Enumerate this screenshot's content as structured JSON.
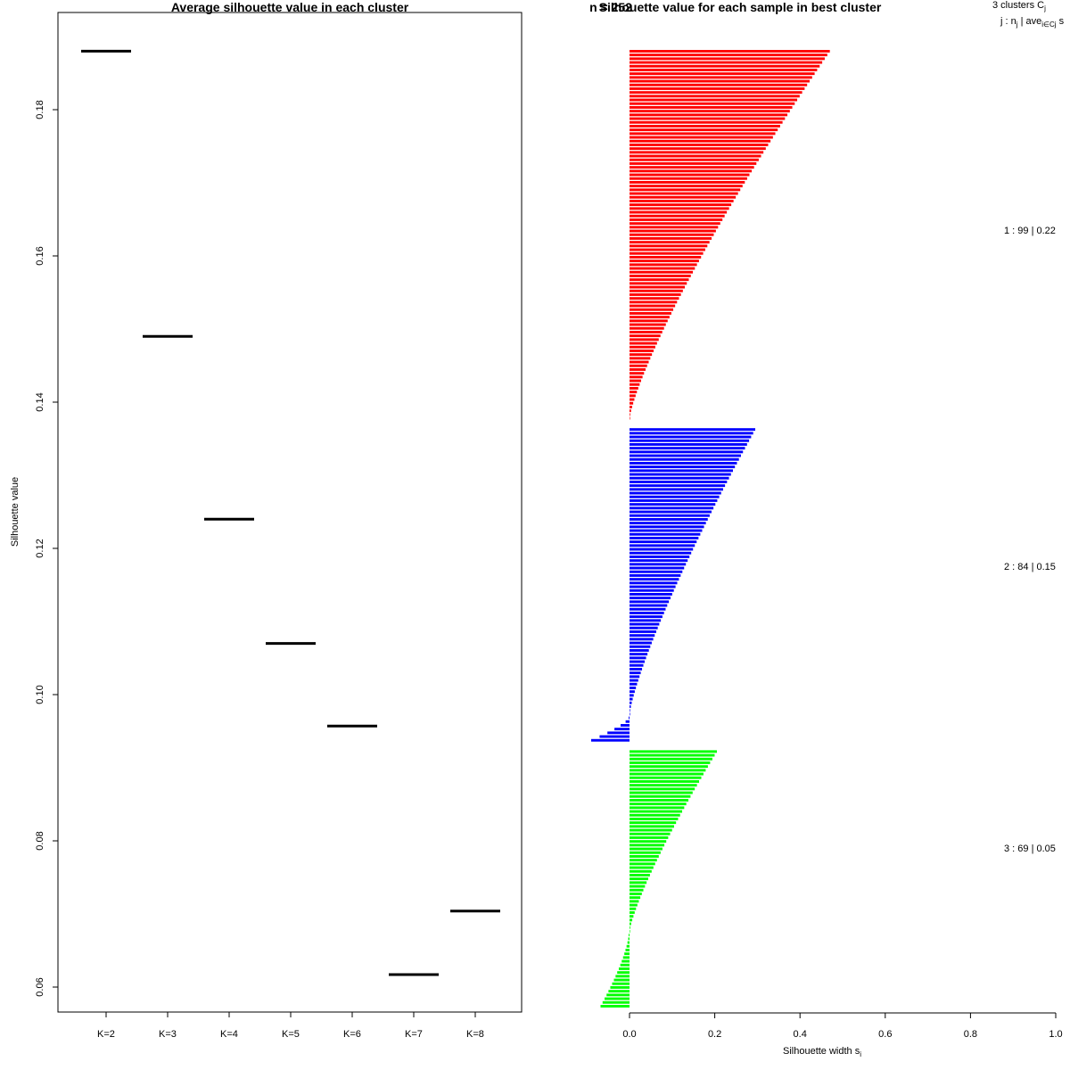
{
  "chart_data": [
    {
      "type": "line",
      "title": "Average silhouette value in each cluster",
      "xlabel": "",
      "ylabel": "Silhouette value",
      "categories": [
        "K=2",
        "K=3",
        "K=4",
        "K=5",
        "K=6",
        "K=7",
        "K=8"
      ],
      "values": [
        0.188,
        0.149,
        0.124,
        0.107,
        0.0957,
        0.0617,
        0.0704
      ],
      "ylim": [
        0.058,
        0.193
      ],
      "yticks": [
        "0.06",
        "0.08",
        "0.10",
        "0.12",
        "0.14",
        "0.16",
        "0.18"
      ],
      "mark": "horizontal segment per category",
      "color": "#000000"
    },
    {
      "type": "bar",
      "orientation": "horizontal",
      "title": "Silhouette value for each sample in best cluster",
      "overlapping_title": "n = 252",
      "xlabel": "Silhouette width s",
      "xlabel_subscript": "i",
      "xlim": [
        0,
        1
      ],
      "xticks": [
        "0.0",
        "0.2",
        "0.4",
        "0.6",
        "0.8",
        "1.0"
      ],
      "legend_header": {
        "line1": "3  clusters  C",
        "line1_sub": "j",
        "line2": "j :  n",
        "line2_sub": "j",
        "line2_rest": " | ave",
        "line2_sub2": "i∈Cj",
        "line2_tail": "  s"
      },
      "series": [
        {
          "name": "1",
          "label": "1 :  99  |  0.22",
          "color": "#ff0000",
          "n": 99,
          "average": 0.22,
          "max": 0.47,
          "min": 0.0,
          "shape": "sorted descending from 0.47 to 0.00"
        },
        {
          "name": "2",
          "label": "2 :  84  |  0.15",
          "color": "#0000ff",
          "n": 84,
          "average": 0.15,
          "max": 0.295,
          "min": -0.088,
          "shape": "sorted descending from 0.295, last 7 samples negative"
        },
        {
          "name": "3",
          "label": "3 :  69  |  0.05",
          "color": "#00ff00",
          "n": 69,
          "average": 0.05,
          "max": 0.205,
          "min": -0.066,
          "shape": "sorted descending from 0.205, last 20 samples negative"
        }
      ]
    }
  ]
}
